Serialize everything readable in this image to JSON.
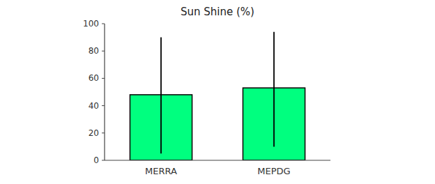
{
  "chart_data": {
    "type": "bar",
    "title": "Sun Shine (%)",
    "categories": [
      "MERRA",
      "MEPDG"
    ],
    "values": [
      48,
      53
    ],
    "error_up": [
      42,
      41
    ],
    "error_down": [
      43,
      43
    ],
    "color": "#00FF7F",
    "ylim": [
      0,
      100
    ],
    "yticks": [
      0,
      20,
      40,
      60,
      80,
      100
    ],
    "grid": false
  }
}
